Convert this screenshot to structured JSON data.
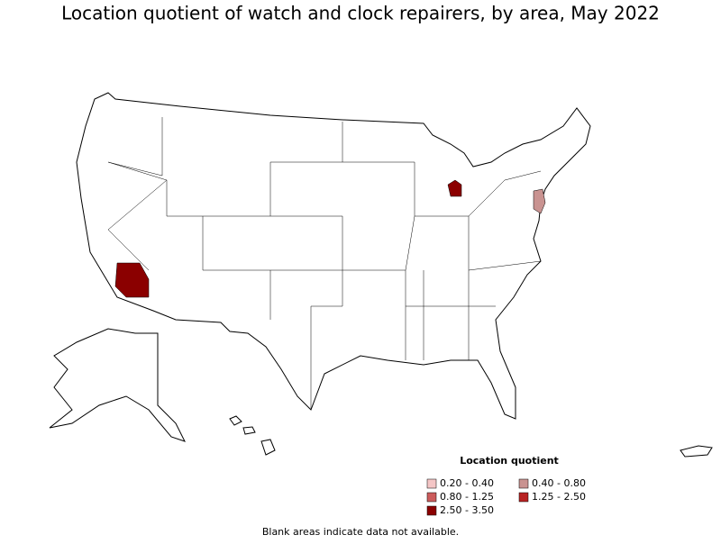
{
  "title": "Location quotient of watch and clock repairers, by area, May 2022",
  "legend": {
    "title": "Location quotient",
    "items": [
      {
        "label": "0.20 - 0.40",
        "color": "#f4c6c6"
      },
      {
        "label": "0.40 - 0.80",
        "color": "#c99391"
      },
      {
        "label": "0.80 - 1.25",
        "color": "#cc5c5c"
      },
      {
        "label": "1.25 - 2.50",
        "color": "#b82222"
      },
      {
        "label": "2.50 - 3.50",
        "color": "#8b0000"
      }
    ]
  },
  "footnote": "Blank areas indicate data not available."
}
